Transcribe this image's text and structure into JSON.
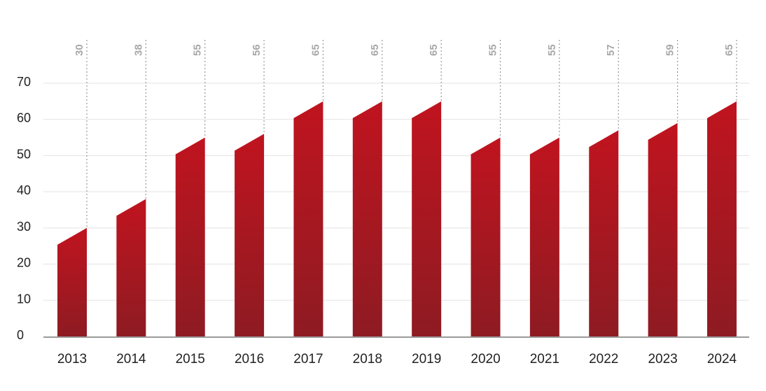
{
  "chart_data": {
    "type": "bar",
    "title": "",
    "xlabel": "",
    "ylabel": "",
    "categories": [
      "2013",
      "2014",
      "2015",
      "2016",
      "2017",
      "2018",
      "2019",
      "2020",
      "2021",
      "2022",
      "2023",
      "2024"
    ],
    "values": [
      30,
      38,
      55,
      56,
      65,
      65,
      65,
      55,
      55,
      57,
      59,
      65
    ],
    "ylim": [
      0,
      70
    ],
    "yticks": [
      "0",
      "10",
      "20",
      "30",
      "40",
      "50",
      "60",
      "70"
    ],
    "grid": true,
    "colors": {
      "bar_top": "#c0141f",
      "bar_bottom": "#8e1b22",
      "label": "#a8a8a8",
      "axis": "#9a9a9a"
    }
  }
}
